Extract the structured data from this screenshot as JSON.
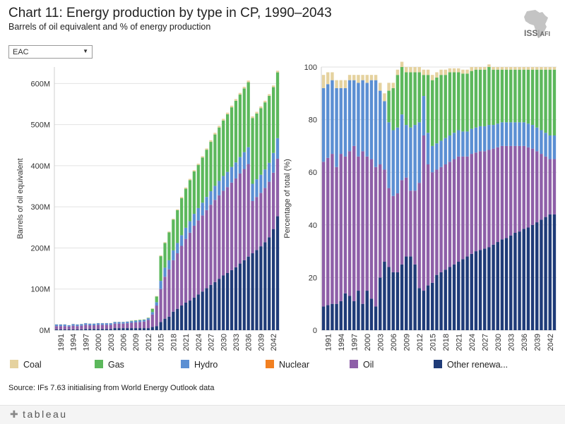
{
  "header": {
    "title": "Chart 11: Energy production by type in CP, 1990–2043",
    "subtitle": "Barrels of oil equivalent and % of energy production"
  },
  "logo": {
    "text_iss": "ISS",
    "text_afi": "AFI",
    "icon": "africa-map-icon"
  },
  "filter": {
    "selected": "EAC"
  },
  "legend": [
    {
      "label": "Coal",
      "color": "#e5d29f"
    },
    {
      "label": "Gas",
      "color": "#5cb85c"
    },
    {
      "label": "Hydro",
      "color": "#5b8fd3"
    },
    {
      "label": "Nuclear",
      "color": "#f28021"
    },
    {
      "label": "Oil",
      "color": "#8e5fa8"
    },
    {
      "label": "Other renewa...",
      "color": "#1f3b78"
    }
  ],
  "source": "Source: IFs 7.63 initialising from World Energy Outlook data",
  "footer": {
    "brand": "tableau"
  },
  "chart_data": [
    {
      "type": "bar",
      "stacked": true,
      "ylabel": "Barrels of oil equivalent",
      "y_tick_labels": [
        "0M",
        "100M",
        "200M",
        "300M",
        "400M",
        "500M",
        "600M"
      ],
      "ylim": [
        0,
        640
      ],
      "units": "million barrels of oil equivalent",
      "x_tick_labels": [
        "1991",
        "1994",
        "1997",
        "2000",
        "2003",
        "2006",
        "2009",
        "2012",
        "2015",
        "2018",
        "2021",
        "2024",
        "2027",
        "2030",
        "2033",
        "2036",
        "2039",
        "2042"
      ],
      "x": [
        1990,
        1991,
        1992,
        1993,
        1994,
        1995,
        1996,
        1997,
        1998,
        1999,
        2000,
        2001,
        2002,
        2003,
        2004,
        2005,
        2006,
        2007,
        2008,
        2009,
        2010,
        2011,
        2012,
        2013,
        2014,
        2015,
        2016,
        2017,
        2018,
        2019,
        2020,
        2021,
        2022,
        2023,
        2024,
        2025,
        2026,
        2027,
        2028,
        2029,
        2030,
        2031,
        2032,
        2033,
        2034,
        2035,
        2036,
        2037,
        2038,
        2039,
        2040,
        2041,
        2042,
        2043
      ],
      "series": [
        {
          "name": "Other renewa...",
          "values": [
            2,
            2,
            2,
            2,
            2,
            2,
            2,
            3,
            3,
            3,
            3,
            3,
            3,
            3,
            5,
            5,
            5,
            5,
            5,
            5,
            5,
            5,
            5,
            8,
            10,
            20,
            28,
            33,
            45,
            52,
            60,
            67,
            72,
            79,
            87,
            94,
            102,
            110,
            117,
            125,
            133,
            139,
            146,
            153,
            162,
            170,
            179,
            187,
            195,
            204,
            214,
            226,
            246,
            277
          ]
        },
        {
          "name": "Oil",
          "values": [
            8,
            8,
            8,
            7,
            9,
            8,
            9,
            10,
            9,
            9,
            10,
            10,
            10,
            10,
            11,
            11,
            11,
            12,
            13,
            14,
            15,
            16,
            20,
            30,
            50,
            80,
            102,
            115,
            125,
            135,
            145,
            155,
            165,
            175,
            180,
            185,
            190,
            195,
            200,
            203,
            206,
            209,
            213,
            216,
            219,
            222,
            225,
            127,
            129,
            130,
            132,
            135,
            137,
            140
          ]
        },
        {
          "name": "Hydro",
          "values": [
            4,
            4,
            4,
            3,
            4,
            4,
            4,
            4,
            4,
            4,
            4,
            4,
            4,
            4,
            4,
            4,
            4,
            4,
            4,
            4,
            4,
            4,
            4,
            6,
            8,
            20,
            22,
            22,
            24,
            25,
            26,
            27,
            28,
            29,
            30,
            31,
            32,
            33,
            34,
            35,
            36,
            37,
            38,
            39,
            40,
            41,
            41,
            42,
            43,
            44,
            45,
            46,
            48,
            50
          ]
        },
        {
          "name": "Nuclear",
          "values": [
            0,
            0,
            0,
            0,
            0,
            0,
            0,
            0,
            0,
            0,
            0,
            0,
            0,
            0,
            0,
            0,
            0,
            0,
            0,
            0,
            0,
            0,
            0,
            0,
            0,
            0,
            0,
            0,
            0,
            0,
            0,
            0,
            0,
            0,
            0,
            0,
            0,
            0,
            0,
            0,
            0,
            0,
            0,
            0,
            0,
            0,
            0,
            0,
            0,
            0,
            0,
            0,
            0,
            0
          ]
        },
        {
          "name": "Gas",
          "values": [
            0,
            0,
            0,
            0,
            0,
            0,
            0,
            0,
            0,
            0,
            0,
            0,
            0,
            0,
            0,
            0,
            0,
            0,
            1,
            1,
            1,
            1,
            1,
            8,
            14,
            60,
            60,
            68,
            75,
            80,
            90,
            95,
            100,
            103,
            105,
            110,
            115,
            120,
            125,
            130,
            135,
            140,
            145,
            150,
            152,
            155,
            158,
            160,
            160,
            162,
            163,
            163,
            160,
            160
          ]
        },
        {
          "name": "Coal",
          "values": [
            0.5,
            0.5,
            0.5,
            0.5,
            0.5,
            0.5,
            0.5,
            0.5,
            0.5,
            0.5,
            0.5,
            0.5,
            0.5,
            0.5,
            0.5,
            0.5,
            0.5,
            0.5,
            0.5,
            0.5,
            0.5,
            0.5,
            0.5,
            1,
            1,
            2,
            2,
            2,
            2,
            2,
            3,
            3,
            3,
            3,
            3,
            3,
            3,
            4,
            4,
            4,
            4,
            4,
            4,
            4,
            4,
            4,
            4,
            4,
            4,
            4,
            4,
            4,
            4,
            4
          ]
        }
      ]
    },
    {
      "type": "bar",
      "stacked": true,
      "ylabel": "Percentage of total (%)",
      "y_tick_labels": [
        "0",
        "20",
        "40",
        "60",
        "80",
        "100"
      ],
      "ylim": [
        0,
        100
      ],
      "x_tick_labels": [
        "1991",
        "1994",
        "1997",
        "2000",
        "2003",
        "2006",
        "2009",
        "2012",
        "2015",
        "2018",
        "2021",
        "2024",
        "2027",
        "2030",
        "2033",
        "2036",
        "2039",
        "2042"
      ],
      "x": [
        1990,
        1991,
        1992,
        1993,
        1994,
        1995,
        1996,
        1997,
        1998,
        1999,
        2000,
        2001,
        2002,
        2003,
        2004,
        2005,
        2006,
        2007,
        2008,
        2009,
        2010,
        2011,
        2012,
        2013,
        2014,
        2015,
        2016,
        2017,
        2018,
        2019,
        2020,
        2021,
        2022,
        2023,
        2024,
        2025,
        2026,
        2027,
        2028,
        2029,
        2030,
        2031,
        2032,
        2033,
        2034,
        2035,
        2036,
        2037,
        2038,
        2039,
        2040,
        2041,
        2042,
        2043
      ],
      "series": [
        {
          "name": "Other renewa...",
          "values": [
            9,
            9.5,
            10,
            10,
            11,
            14,
            13,
            11,
            15,
            10,
            15,
            12,
            9,
            20,
            26,
            24,
            22,
            22,
            25,
            28,
            28,
            25,
            16,
            15,
            17,
            18,
            21,
            22,
            23,
            24,
            25,
            26,
            27,
            28,
            29,
            30,
            30.5,
            31,
            31.5,
            32.5,
            33.5,
            34.5,
            35,
            36,
            37,
            37.5,
            38.5,
            39,
            40,
            41,
            42,
            43,
            44,
            44
          ]
        },
        {
          "name": "Oil",
          "values": [
            55,
            56,
            57,
            52,
            56,
            52,
            55,
            59,
            51,
            58,
            51,
            53,
            53,
            43,
            35,
            30,
            29,
            30,
            32,
            30,
            25,
            28,
            40,
            59,
            46,
            42,
            40,
            40,
            40,
            40,
            40,
            40,
            39,
            38,
            38,
            37.5,
            37.5,
            37,
            37,
            36.5,
            36,
            35.5,
            35,
            34,
            33,
            32.5,
            31.5,
            30.5,
            29,
            27,
            25,
            23,
            21,
            21
          ]
        },
        {
          "name": "Hydro",
          "values": [
            28,
            28,
            28,
            30,
            25,
            26,
            27,
            25,
            28,
            27,
            28,
            30,
            33,
            28,
            26,
            25,
            25,
            25,
            25,
            20,
            24,
            25,
            23,
            15,
            12,
            10,
            10,
            10,
            10,
            10,
            10,
            10,
            9.5,
            9.5,
            9.5,
            9.5,
            9.5,
            9.5,
            9.5,
            9,
            9,
            9,
            9,
            9,
            9,
            9,
            9,
            9,
            9,
            9,
            9,
            9,
            9,
            9
          ]
        },
        {
          "name": "Nuclear",
          "values": [
            0,
            0,
            0,
            0,
            0,
            0,
            0,
            0,
            0,
            0,
            0,
            0,
            0,
            0,
            0,
            0,
            0,
            0,
            0,
            0,
            0,
            0,
            0,
            0,
            0,
            0,
            0,
            0,
            0,
            0,
            0,
            0,
            0,
            0,
            0,
            0,
            0,
            0,
            0,
            0,
            0,
            0,
            0,
            0,
            0,
            0,
            0,
            0,
            0,
            0,
            0,
            0,
            0,
            0
          ]
        },
        {
          "name": "Gas",
          "values": [
            0,
            0,
            0,
            0,
            0,
            0,
            0,
            0,
            0,
            0,
            0,
            0,
            0,
            0,
            0,
            12,
            16,
            20,
            18,
            20,
            21,
            20,
            19,
            8,
            22,
            25,
            25,
            25,
            24,
            24,
            23,
            22,
            22,
            22,
            22,
            22,
            21.5,
            21.5,
            22,
            21,
            20.5,
            20,
            20,
            20,
            20,
            20,
            20,
            20.5,
            21,
            22,
            23,
            24,
            25,
            25
          ]
        },
        {
          "name": "Coal",
          "values": [
            5,
            4.5,
            3,
            3,
            3,
            3,
            2,
            2,
            3,
            2,
            3,
            2,
            2,
            3,
            3,
            3,
            2,
            2,
            2,
            2,
            2,
            2,
            2,
            2,
            2,
            2,
            2,
            2,
            2,
            1.5,
            1.5,
            1.5,
            1.5,
            1.5,
            1.5,
            1,
            1,
            1,
            1,
            1,
            1,
            1,
            1,
            1,
            1,
            1,
            1,
            1,
            1,
            1,
            1,
            1,
            1,
            1
          ]
        }
      ]
    }
  ]
}
